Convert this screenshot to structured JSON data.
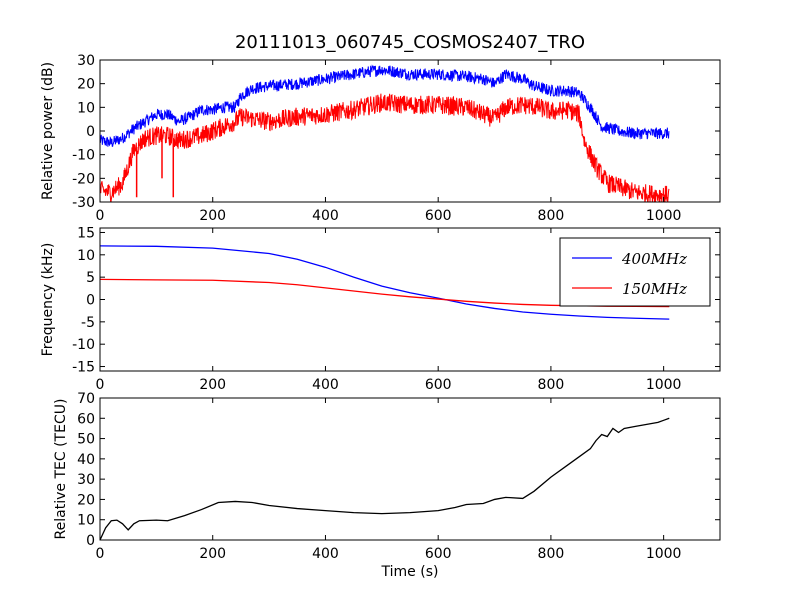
{
  "figure": {
    "title": "20111013_060745_COSMOS2407_TRO"
  },
  "chart_data": [
    {
      "type": "line",
      "ylabel": "Relative power (dB)",
      "xlabel": "",
      "xlim": [
        0,
        1100
      ],
      "ylim": [
        -30,
        30
      ],
      "xticks": [
        0,
        200,
        400,
        600,
        800,
        1000
      ],
      "yticks": [
        -30,
        -20,
        -10,
        0,
        10,
        20,
        30
      ],
      "grid": false,
      "legend": null,
      "series": [
        {
          "color": "#0000ff",
          "noise": 2.5,
          "points": [
            [
              0,
              -4
            ],
            [
              20,
              -5
            ],
            [
              40,
              -3
            ],
            [
              60,
              1
            ],
            [
              80,
              4
            ],
            [
              100,
              7
            ],
            [
              120,
              7
            ],
            [
              140,
              4
            ],
            [
              160,
              6
            ],
            [
              180,
              9
            ],
            [
              200,
              9
            ],
            [
              220,
              10
            ],
            [
              240,
              10
            ],
            [
              250,
              15
            ],
            [
              270,
              18
            ],
            [
              300,
              19
            ],
            [
              350,
              20
            ],
            [
              400,
              22
            ],
            [
              450,
              24
            ],
            [
              500,
              26
            ],
            [
              550,
              24
            ],
            [
              600,
              24
            ],
            [
              650,
              23
            ],
            [
              680,
              22
            ],
            [
              700,
              20
            ],
            [
              720,
              24
            ],
            [
              750,
              22
            ],
            [
              770,
              19
            ],
            [
              800,
              17
            ],
            [
              830,
              17
            ],
            [
              850,
              16
            ],
            [
              870,
              10
            ],
            [
              890,
              2
            ],
            [
              920,
              0
            ],
            [
              950,
              -1
            ],
            [
              1000,
              -1
            ],
            [
              1010,
              -1
            ]
          ]
        },
        {
          "color": "#ff0000",
          "noise": 4,
          "spikes": [
            [
              65,
              -28
            ],
            [
              110,
              -20
            ],
            [
              130,
              -28
            ]
          ],
          "points": [
            [
              0,
              -25
            ],
            [
              20,
              -26
            ],
            [
              40,
              -22
            ],
            [
              60,
              -8
            ],
            [
              80,
              -3
            ],
            [
              100,
              -2
            ],
            [
              120,
              -2
            ],
            [
              140,
              -4
            ],
            [
              160,
              -3
            ],
            [
              180,
              -2
            ],
            [
              200,
              0
            ],
            [
              220,
              2
            ],
            [
              240,
              4
            ],
            [
              250,
              6
            ],
            [
              300,
              4
            ],
            [
              350,
              6
            ],
            [
              400,
              7
            ],
            [
              450,
              9
            ],
            [
              500,
              12
            ],
            [
              550,
              11
            ],
            [
              600,
              11
            ],
            [
              650,
              10
            ],
            [
              700,
              5
            ],
            [
              720,
              10
            ],
            [
              750,
              11
            ],
            [
              780,
              10
            ],
            [
              800,
              8
            ],
            [
              830,
              9
            ],
            [
              850,
              7
            ],
            [
              860,
              -5
            ],
            [
              880,
              -15
            ],
            [
              900,
              -22
            ],
            [
              950,
              -26
            ],
            [
              1000,
              -27
            ],
            [
              1010,
              -27
            ]
          ]
        }
      ]
    },
    {
      "type": "line",
      "ylabel": "Frequency (kHz)",
      "xlabel": "",
      "xlim": [
        0,
        1100
      ],
      "ylim": [
        -16,
        16
      ],
      "xticks": [
        0,
        200,
        400,
        600,
        800,
        1000
      ],
      "yticks": [
        -15,
        -10,
        -5,
        0,
        5,
        10,
        15
      ],
      "grid": false,
      "legend": "top-right",
      "series": [
        {
          "name": "400MHz",
          "color": "#0000ff",
          "points": [
            [
              0,
              12
            ],
            [
              100,
              11.9
            ],
            [
              200,
              11.5
            ],
            [
              300,
              10.3
            ],
            [
              350,
              9
            ],
            [
              400,
              7.2
            ],
            [
              450,
              5
            ],
            [
              500,
              3
            ],
            [
              550,
              1.5
            ],
            [
              600,
              0.3
            ],
            [
              650,
              -1
            ],
            [
              700,
              -2
            ],
            [
              750,
              -2.8
            ],
            [
              800,
              -3.3
            ],
            [
              850,
              -3.7
            ],
            [
              900,
              -4
            ],
            [
              950,
              -4.2
            ],
            [
              1010,
              -4.4
            ]
          ]
        },
        {
          "name": "150MHz",
          "color": "#ff0000",
          "points": [
            [
              0,
              4.5
            ],
            [
              100,
              4.4
            ],
            [
              200,
              4.3
            ],
            [
              300,
              3.8
            ],
            [
              350,
              3.3
            ],
            [
              400,
              2.6
            ],
            [
              450,
              1.9
            ],
            [
              500,
              1.2
            ],
            [
              550,
              0.6
            ],
            [
              600,
              0.1
            ],
            [
              650,
              -0.4
            ],
            [
              700,
              -0.8
            ],
            [
              750,
              -1.1
            ],
            [
              800,
              -1.3
            ],
            [
              850,
              -1.4
            ],
            [
              900,
              -1.5
            ],
            [
              1010,
              -1.6
            ]
          ]
        }
      ]
    },
    {
      "type": "line",
      "ylabel": "Relative TEC (TECU)",
      "xlabel": "Time (s)",
      "xlim": [
        0,
        1100
      ],
      "ylim": [
        0,
        70
      ],
      "xticks": [
        0,
        200,
        400,
        600,
        800,
        1000
      ],
      "yticks": [
        0,
        10,
        20,
        30,
        40,
        50,
        60,
        70
      ],
      "grid": false,
      "legend": null,
      "series": [
        {
          "color": "#000000",
          "points": [
            [
              0,
              0
            ],
            [
              10,
              6
            ],
            [
              20,
              9.5
            ],
            [
              30,
              9.8
            ],
            [
              40,
              8
            ],
            [
              50,
              5
            ],
            [
              60,
              8
            ],
            [
              70,
              9.5
            ],
            [
              100,
              9.8
            ],
            [
              120,
              9.5
            ],
            [
              150,
              12
            ],
            [
              180,
              15
            ],
            [
              210,
              18.5
            ],
            [
              240,
              19
            ],
            [
              270,
              18.5
            ],
            [
              300,
              17
            ],
            [
              350,
              15.5
            ],
            [
              400,
              14.5
            ],
            [
              450,
              13.5
            ],
            [
              500,
              13
            ],
            [
              550,
              13.5
            ],
            [
              600,
              14.5
            ],
            [
              630,
              16
            ],
            [
              650,
              17.5
            ],
            [
              680,
              18
            ],
            [
              700,
              20
            ],
            [
              720,
              21
            ],
            [
              750,
              20.5
            ],
            [
              770,
              24
            ],
            [
              800,
              31
            ],
            [
              830,
              37
            ],
            [
              850,
              41
            ],
            [
              870,
              45
            ],
            [
              880,
              49
            ],
            [
              890,
              52
            ],
            [
              900,
              51
            ],
            [
              910,
              55
            ],
            [
              920,
              53
            ],
            [
              930,
              55
            ],
            [
              950,
              56
            ],
            [
              970,
              57
            ],
            [
              990,
              58
            ],
            [
              1000,
              59
            ],
            [
              1010,
              60
            ]
          ]
        }
      ]
    }
  ]
}
